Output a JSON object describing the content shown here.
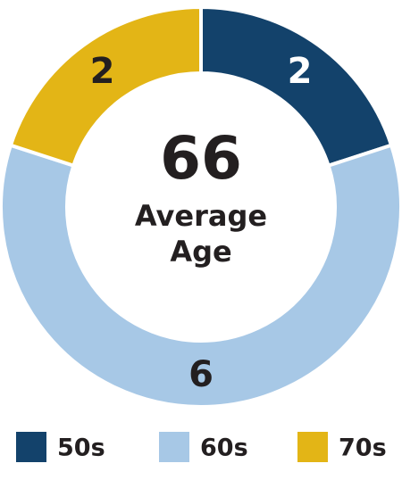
{
  "chart_data": {
    "type": "donut",
    "center_value": 66,
    "center_label": "Average Age",
    "categories": [
      "50s",
      "60s",
      "70s"
    ],
    "values": [
      2,
      6,
      2
    ],
    "colors": [
      "#13426b",
      "#a7c8e6",
      "#e3b516"
    ]
  }
}
